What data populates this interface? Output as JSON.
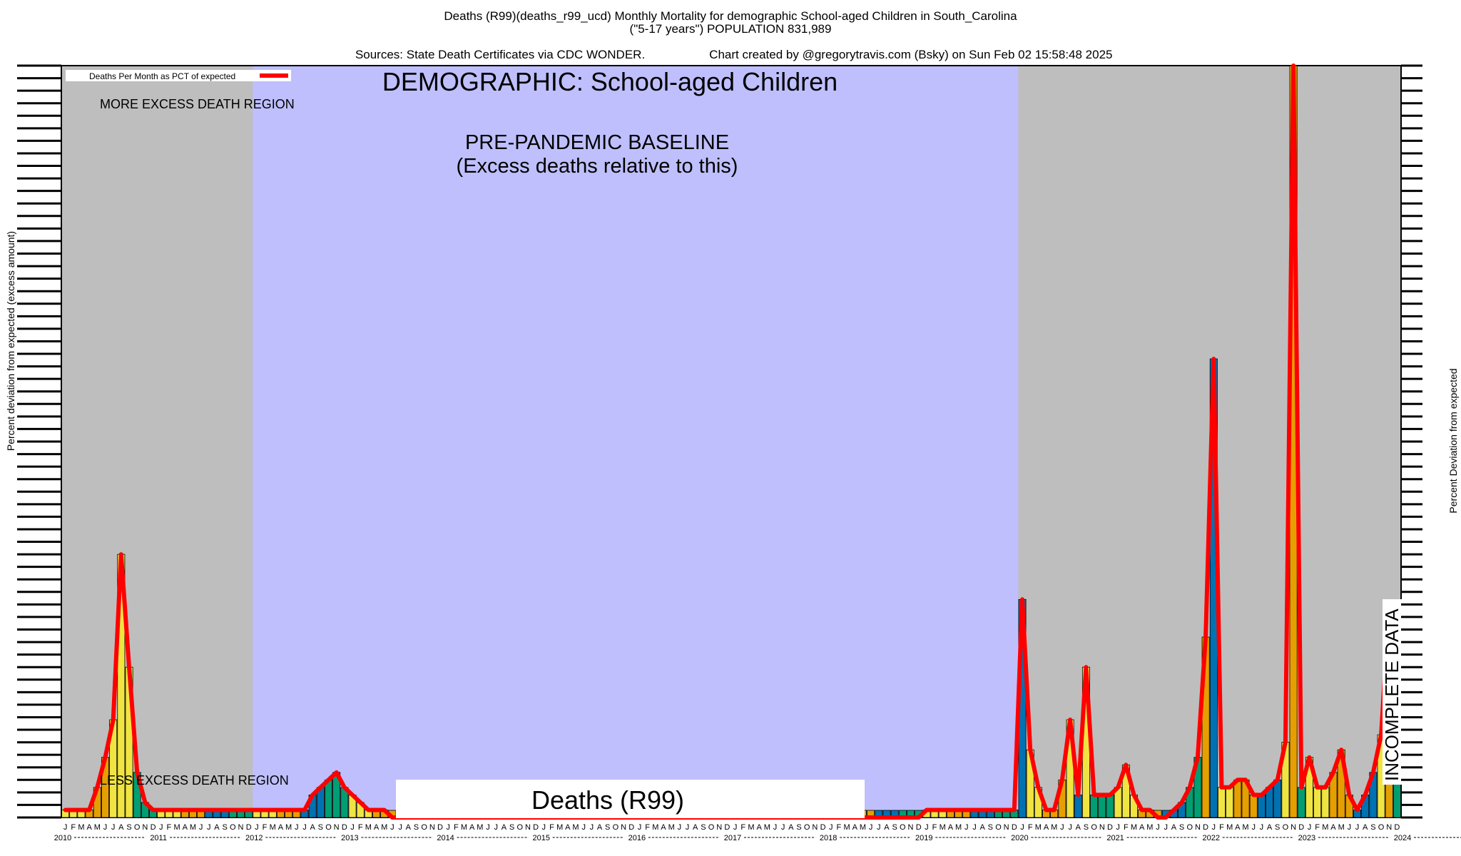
{
  "header": {
    "line1": "Deaths (R99)(deaths_r99_ucd) Monthly Mortality for demographic School-aged Children in South_Carolina",
    "line2": "(\"5-17 years\") POPULATION 831,989",
    "line3_left": "Sources: State Death Certificates via CDC WONDER.",
    "line3_right": "Chart created by @gregorytravis.com (Bsky) on Sun Feb 02 15:58:48 2025"
  },
  "legend": {
    "label": "Deaths Per Month as PCT of expected",
    "color": "#ff0000"
  },
  "annotations": {
    "demographic": "DEMOGRAPHIC: School-aged Children",
    "more_excess": "MORE EXCESS DEATH REGION",
    "baseline_1": "PRE-PANDEMIC BASELINE",
    "baseline_2": "(Excess deaths relative to this)",
    "less_excess": "LESS EXCESS DEATH REGION",
    "cause_box": "Deaths (R99)",
    "incomplete": "INCOMPLETE DATA"
  },
  "axis": {
    "left_label": "Percent deviation from expected (excess amount)",
    "right_label": "Percent Deviation from expected",
    "years": [
      "2010",
      "2011",
      "2012",
      "2013",
      "2014",
      "2015",
      "2016",
      "2017",
      "2018",
      "2019",
      "2020",
      "2021",
      "2022",
      "2023",
      "2024"
    ],
    "month_letters": [
      "J",
      "F",
      "M",
      "A",
      "M",
      "J",
      "J",
      "A",
      "S",
      "O",
      "N",
      "D"
    ]
  },
  "colors": {
    "baseline_shade": "#bfbffd",
    "other_shade": "#bebebe",
    "line": "#ff0000",
    "bar_yellow": "#f0e442",
    "bar_orange": "#e69f00",
    "bar_blue": "#0072b2",
    "bar_green": "#009e73"
  },
  "chart_data": {
    "type": "bar",
    "title": "Deaths (R99)(deaths_r99_ucd) Monthly Mortality for demographic School-aged Children in South_Carolina",
    "xlabel": "",
    "ylabel": "Percent deviation from expected (excess amount)",
    "x_start": "2010-01",
    "x_end": "2024-12",
    "baseline_period": [
      "2012-01",
      "2019-12"
    ],
    "incomplete_from": "2024-01",
    "ylim": [
      0,
      100
    ],
    "series": [
      {
        "name": "Deaths Per Month as PCT of expected",
        "values": [
          1,
          1,
          1,
          1,
          4,
          8,
          13,
          35,
          20,
          6,
          2,
          1,
          1,
          1,
          1,
          1,
          1,
          1,
          1,
          1,
          1,
          1,
          1,
          1,
          1,
          1,
          1,
          1,
          1,
          1,
          1,
          3,
          4,
          5,
          6,
          4,
          3,
          2,
          1,
          1,
          1,
          0,
          0,
          0,
          0,
          0,
          0,
          0,
          0,
          0,
          0,
          0,
          0,
          0,
          0,
          0,
          0,
          0,
          0,
          0,
          0,
          0,
          0,
          0,
          0,
          0,
          0,
          0,
          0,
          0,
          0,
          0,
          0,
          0,
          0,
          0,
          0,
          0,
          0,
          0,
          0,
          0,
          0,
          0,
          0,
          0,
          0,
          0,
          0,
          0,
          0,
          0,
          0,
          0,
          0,
          0,
          0,
          0,
          0,
          0,
          0,
          0,
          0,
          0,
          0,
          0,
          0,
          0,
          1,
          1,
          1,
          1,
          1,
          1,
          1,
          1,
          1,
          1,
          1,
          1,
          29,
          9,
          4,
          1,
          1,
          5,
          13,
          3,
          20,
          3,
          3,
          3,
          4,
          7,
          3,
          1,
          1,
          0,
          0,
          1,
          2,
          4,
          8,
          24,
          61,
          4,
          4,
          5,
          5,
          3,
          3,
          4,
          5,
          10,
          100,
          4,
          8,
          4,
          4,
          6,
          9,
          3,
          1,
          3,
          6,
          11,
          28,
          6
        ]
      }
    ]
  }
}
